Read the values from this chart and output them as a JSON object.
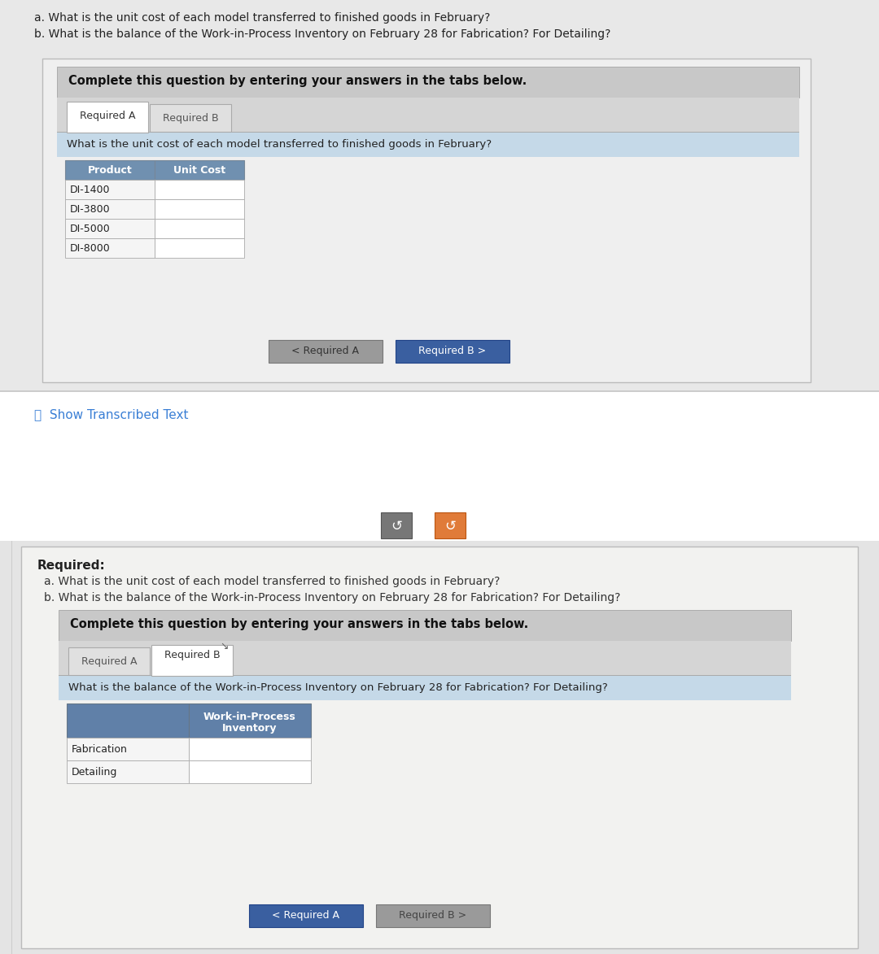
{
  "page_bg": "#ffffff",
  "panel_bg": "#f0f0ee",
  "inner_card_bg": "#f0f0ee",
  "white": "#ffffff",
  "gray_banner": "#c8c8c8",
  "tab_area_bg": "#e0e0e0",
  "tab_selected_bg": "#ffffff",
  "tab_unselected_bg": "#e8e8e8",
  "light_blue_bar": "#c5d9e8",
  "table_header_bg": "#7090b0",
  "table_header_bg2": "#6080a8",
  "table_row_bg": "#f5f5f5",
  "input_bg": "#ffffff",
  "dark_blue_btn": "#3a5fa0",
  "gray_btn": "#9a9a9a",
  "orange_btn": "#e07b39",
  "link_blue": "#3a7fd5",
  "text_dark": "#2a2a2a",
  "text_gray": "#555555",
  "border_color": "#aaaaaa",
  "border_light": "#cccccc",
  "section_a_line1": "a. What is the unit cost of each model transferred to finished goods in February?",
  "section_a_line2": "b. What is the balance of the Work-in-Process Inventory on February 28 for Fabrication? For Detailing?",
  "complete_text": "Complete this question by entering your answers in the tabs below.",
  "tab_a_label": "Required A",
  "tab_b_label": "Required B",
  "question_a": "What is the unit cost of each model transferred to finished goods in February?",
  "col1_header": "Product",
  "col2_header": "Unit Cost",
  "products": [
    "DI-1400",
    "DI-3800",
    "DI-5000",
    "DI-8000"
  ],
  "btn_left_a_text": "< Required A",
  "btn_right_a_text": "Required B >",
  "show_transcribed_text": "ⓘ  Show Transcribed Text",
  "required_label": "Required:",
  "req_line1": "a. What is the unit cost of each model transferred to finished goods in February?",
  "req_line2": "b. What is the balance of the Work-in-Process Inventory on February 28 for Fabrication? For Detailing?",
  "question_b": "What is the balance of the Work-in-Process Inventory on February 28 for Fabrication? For Detailing?",
  "col_b_header_line1": "Work-in-Process",
  "col_b_header_line2": "Inventory",
  "rows_b": [
    "Fabrication",
    "Detailing"
  ],
  "btn_left_b_text": "< Required A",
  "btn_right_b_text": "Required B >"
}
